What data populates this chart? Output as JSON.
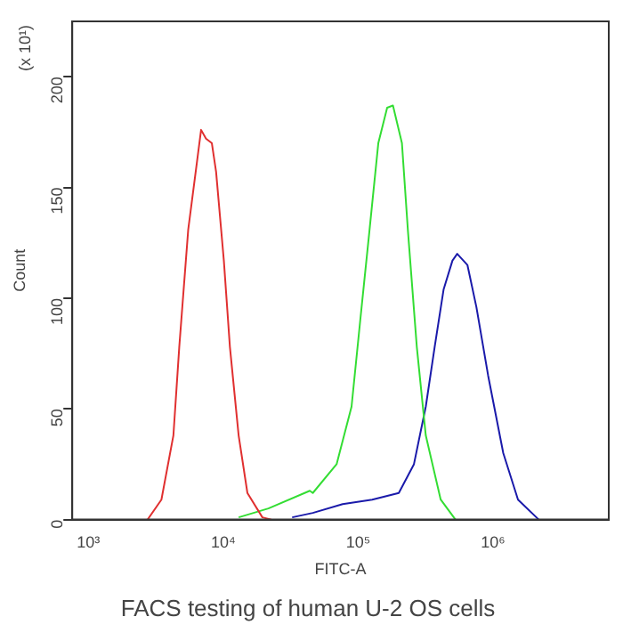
{
  "chart_data": {
    "type": "line",
    "title": "FACS testing of human U-2 OS cells",
    "xlabel": "FITC-A",
    "ylabel": "Count",
    "annotations": [
      "(x 10¹)"
    ],
    "log": "x",
    "xlim": [
      760,
      7200000
    ],
    "xticks": [
      {
        "value": 1000,
        "label": "10³"
      },
      {
        "value": 10000,
        "label": "10⁴"
      },
      {
        "value": 100000,
        "label": "10⁵"
      },
      {
        "value": 1000000,
        "label": "10⁶"
      }
    ],
    "ylim": [
      0,
      225
    ],
    "yticks": [
      0,
      50,
      100,
      150,
      200
    ],
    "grid": false,
    "legend": false,
    "marker": "none",
    "line_style": "solid",
    "series": [
      {
        "color": "#e03030",
        "x": [
          2750,
          3480,
          4270,
          4720,
          5500,
          6400,
          6850,
          7450,
          8230,
          8850,
          10100,
          11200,
          13000,
          15100,
          19500,
          22700
        ],
        "values": [
          0,
          9,
          38,
          78,
          131,
          162,
          176,
          172,
          170,
          157,
          117,
          78,
          38,
          12,
          1,
          0
        ]
      },
      {
        "color": "#33dd33",
        "x": [
          13000,
          21600,
          43800,
          46100,
          69200,
          89300,
          104000,
          121000,
          141000,
          164000,
          181000,
          211000,
          234000,
          272000,
          317000,
          409000,
          526000
        ],
        "values": [
          1,
          5,
          13,
          12,
          25,
          51,
          91,
          130,
          170,
          186,
          187,
          170,
          130,
          78,
          38,
          9,
          0
        ]
      },
      {
        "color": "#1a1aaa",
        "x": [
          32400,
          46100,
          76700,
          127000,
          200000,
          259000,
          317000,
          369000,
          430000,
          500000,
          542000,
          645000,
          752000,
          919000,
          1190000,
          1530000,
          2180000
        ],
        "values": [
          1,
          3,
          7,
          9,
          12,
          25,
          51,
          78,
          104,
          117,
          120,
          115,
          96,
          65,
          30,
          9,
          0
        ]
      }
    ]
  }
}
